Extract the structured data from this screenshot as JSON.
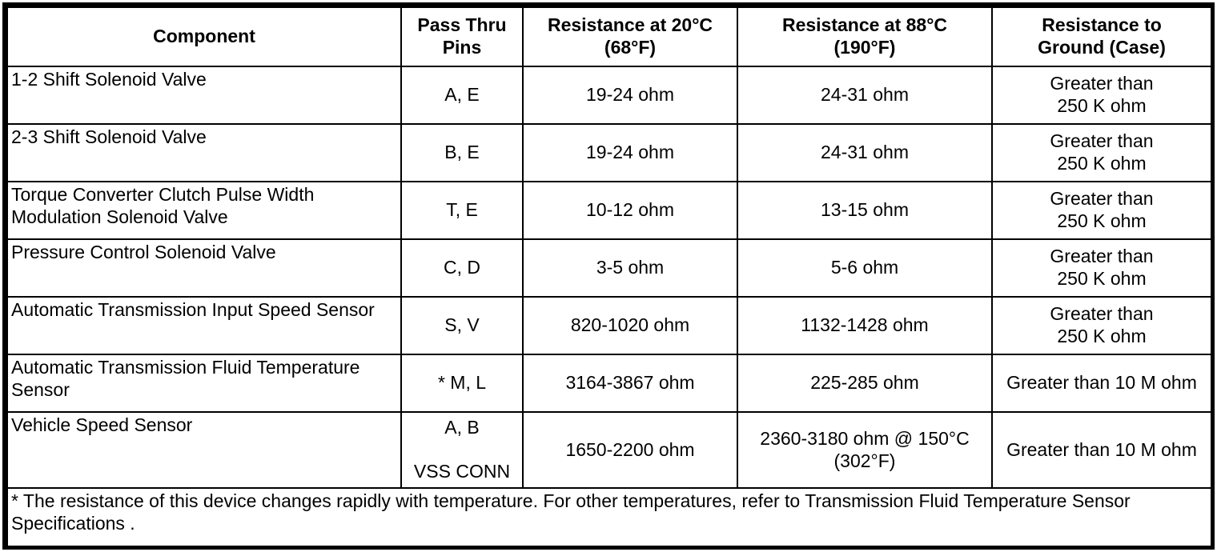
{
  "table": {
    "headers": {
      "component": "Component",
      "pins": "Pass Thru\nPins",
      "r20": "Resistance at 20°C\n(68°F)",
      "r88": "Resistance at 88°C\n(190°F)",
      "ground": "Resistance to\nGround (Case)"
    },
    "rows": [
      {
        "component": "1-2 Shift Solenoid Valve",
        "pins": "A, E",
        "r20": "19-24 ohm",
        "r88": "24-31 ohm",
        "ground": "Greater than\n250 K ohm"
      },
      {
        "component": "2-3 Shift Solenoid Valve",
        "pins": "B, E",
        "r20": "19-24 ohm",
        "r88": "24-31 ohm",
        "ground": "Greater than\n250 K ohm"
      },
      {
        "component": "Torque Converter Clutch Pulse Width Modulation Solenoid Valve",
        "pins": "T, E",
        "r20": "10-12 ohm",
        "r88": "13-15 ohm",
        "ground": "Greater than\n250 K ohm"
      },
      {
        "component": "Pressure Control Solenoid Valve",
        "pins": "C, D",
        "r20": "3-5 ohm",
        "r88": "5-6 ohm",
        "ground": "Greater than\n250 K ohm"
      },
      {
        "component": "Automatic Transmission Input Speed Sensor",
        "pins": "S, V",
        "r20": "820-1020 ohm",
        "r88": "1132-1428 ohm",
        "ground": "Greater than\n250 K ohm"
      },
      {
        "component": "Automatic Transmission Fluid Temperature Sensor",
        "pins": "* M, L",
        "r20": "3164-3867 ohm",
        "r88": "225-285 ohm",
        "ground": "Greater than 10 M ohm"
      },
      {
        "component": "Vehicle Speed Sensor",
        "pins": "A, B\n\nVSS CONN",
        "r20": "1650-2200 ohm",
        "r88": "2360-3180 ohm @ 150°C\n(302°F)",
        "ground": "Greater than 10 M ohm"
      }
    ],
    "footnote": "* The resistance of this device changes rapidly with temperature. For other temperatures, refer to Transmission Fluid Temperature Sensor Specifications ."
  },
  "colors": {
    "border": "#000000",
    "text": "#000000",
    "background": "#ffffff"
  }
}
